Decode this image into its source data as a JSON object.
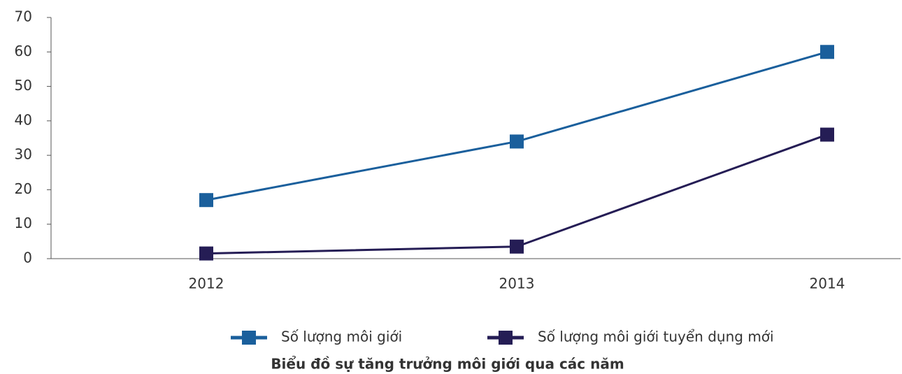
{
  "chart_data": {
    "type": "line",
    "title": "Biểu đồ sự tăng trưởng môi giới qua các năm",
    "categories": [
      "2012",
      "2013",
      "2014"
    ],
    "series": [
      {
        "name": "Số lượng môi giới",
        "color": "#1a5f9c",
        "values": [
          17,
          34,
          60
        ]
      },
      {
        "name": "Số lượng môi giới tuyển dụng mới",
        "color": "#251d55",
        "values": [
          1.5,
          3.5,
          36
        ]
      }
    ],
    "ylim": [
      0,
      70
    ],
    "yticks": [
      0,
      10,
      20,
      30,
      40,
      50,
      60,
      70
    ],
    "grid": false
  }
}
